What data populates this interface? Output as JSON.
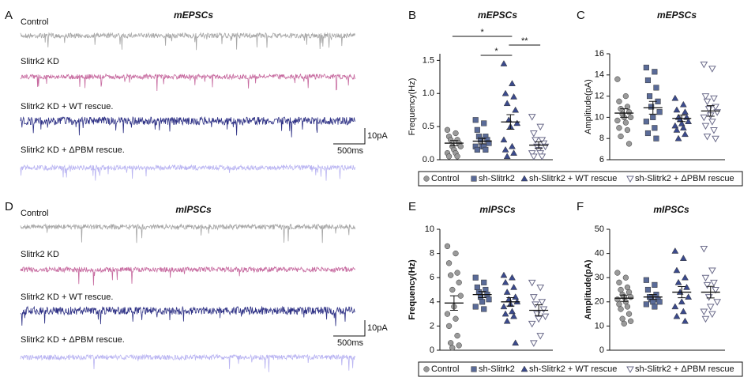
{
  "traces": [
    {
      "panel": "A",
      "title": "mEPSCs",
      "scale_y": "10pA",
      "scale_x": "500ms",
      "rows": [
        {
          "label": "Control",
          "color": "#a6a6a6"
        },
        {
          "label": "Slitrk2 KD",
          "color": "#c76ba0"
        },
        {
          "label": "Slitrk2 KD + WT rescue.",
          "color": "#2e3185"
        },
        {
          "label": "Slitrk2 KD + ΔPBM rescue.",
          "color": "#b9b4f2"
        }
      ]
    },
    {
      "panel": "D",
      "title": "mIPSCs",
      "scale_y": "10pA",
      "scale_x": "500ms",
      "rows": [
        {
          "label": "Control",
          "color": "#a6a6a6"
        },
        {
          "label": "Slitrk2 KD",
          "color": "#c76ba0"
        },
        {
          "label": "Slitrk2 KD + WT rescue.",
          "color": "#2e3185"
        },
        {
          "label": "Slitrk2 KD + ΔPBM rescue.",
          "color": "#b9b4f2"
        }
      ]
    }
  ],
  "chart_data": [
    {
      "type": "strip",
      "panel": "B",
      "title": "mEPSCs",
      "ylabel": "Frequency(Hz)",
      "ylabel_weight": "normal",
      "legend": "bottom",
      "ylim": [
        0,
        1.6
      ],
      "yticks": [
        {
          "value": 0,
          "label": "0.0"
        },
        0.5,
        {
          "value": 1,
          "label": "1.0"
        },
        1.5
      ],
      "series": [
        {
          "name": "Control",
          "color": "#9a9a9a",
          "marker": "circle",
          "filled": true,
          "mean": 0.25,
          "sem": 0.04,
          "values": [
            0.45,
            0.4,
            0.35,
            0.3,
            0.3,
            0.25,
            0.2,
            0.2,
            0.15,
            0.1,
            0.1,
            0.05,
            0.05
          ]
        },
        {
          "name": "sh-Slitrk2",
          "color": "#5a6b98",
          "marker": "square",
          "filled": true,
          "mean": 0.28,
          "sem": 0.04,
          "values": [
            0.6,
            0.55,
            0.45,
            0.35,
            0.35,
            0.3,
            0.3,
            0.25,
            0.2,
            0.2,
            0.2,
            0.15,
            0.15
          ]
        },
        {
          "name": "sh-Slitrk2 + WT rescue",
          "color": "#3b4a8c",
          "marker": "triangle",
          "filled": true,
          "mean": 0.57,
          "sem": 0.11,
          "values": [
            1.45,
            1.15,
            1.0,
            0.95,
            0.85,
            0.75,
            0.6,
            0.55,
            0.5,
            0.3,
            0.2,
            0.15,
            0.1,
            0.05
          ]
        },
        {
          "name": "sh-Slitrk2 + ΔPBM rescue",
          "color": "#6b6b8a",
          "marker": "triangle-down",
          "filled": false,
          "mean": 0.22,
          "sem": 0.05,
          "values": [
            0.65,
            0.5,
            0.4,
            0.3,
            0.3,
            0.25,
            0.2,
            0.2,
            0.15,
            0.1,
            0.1,
            0.05,
            0.05
          ]
        }
      ],
      "annotations": [
        {
          "label": "*",
          "between": [
            0,
            2
          ]
        },
        {
          "label": "*",
          "between": [
            1,
            2
          ]
        },
        {
          "label": "**",
          "between": [
            2,
            3
          ]
        }
      ]
    },
    {
      "type": "strip",
      "panel": "C",
      "title": "mEPSCs",
      "ylabel": "Amplitude(pA)",
      "ylabel_weight": "normal",
      "ylim": [
        6,
        16
      ],
      "yticks": [
        6,
        8,
        10,
        12,
        14,
        16
      ],
      "series": [
        {
          "color": "#9a9a9a",
          "marker": "circle",
          "filled": true,
          "mean": 10.4,
          "sem": 0.4,
          "values": [
            13.6,
            12,
            11.5,
            11,
            10.8,
            10.5,
            10.3,
            10,
            10,
            9.7,
            9.5,
            9,
            8.8,
            8.2,
            7.5
          ]
        },
        {
          "color": "#5a6b98",
          "marker": "square",
          "filled": true,
          "mean": 10.9,
          "sem": 0.6,
          "values": [
            14.7,
            14.3,
            13.5,
            12.8,
            12,
            11.5,
            11,
            10.5,
            10,
            9.6,
            9,
            8.5,
            8
          ]
        },
        {
          "color": "#3b4a8c",
          "marker": "triangle",
          "filled": true,
          "mean": 9.9,
          "sem": 0.3,
          "values": [
            11.8,
            11.2,
            10.7,
            10.5,
            10,
            10,
            9.8,
            9.6,
            9.4,
            9.2,
            9,
            8.8,
            8.4,
            8
          ]
        },
        {
          "color": "#6b6b8a",
          "marker": "triangle-down",
          "filled": false,
          "mean": 10.6,
          "sem": 0.5,
          "values": [
            15,
            14.6,
            12,
            11.8,
            11.5,
            11,
            10.8,
            10.5,
            10.2,
            10,
            9.6,
            9.2,
            8.8,
            8.2,
            8
          ]
        }
      ]
    },
    {
      "type": "strip",
      "panel": "E",
      "title": "mIPSCs",
      "ylabel": "Frequency(Hz)",
      "ylabel_weight": "bold",
      "legend": "bottom",
      "ylim": [
        0,
        10
      ],
      "yticks": [
        0,
        2,
        4,
        6,
        8,
        10
      ],
      "series": [
        {
          "name": "Control",
          "color": "#9a9a9a",
          "marker": "circle",
          "filled": true,
          "mean": 3.9,
          "sem": 0.6,
          "values": [
            8.6,
            8,
            7.2,
            6.4,
            6.2,
            5.6,
            5,
            4.5,
            3.6,
            3,
            2.6,
            2,
            1.2,
            0.6,
            0.4,
            0.2
          ]
        },
        {
          "name": "sh-Slitrk2",
          "color": "#5a6b98",
          "marker": "square",
          "filled": true,
          "mean": 4.6,
          "sem": 0.25,
          "values": [
            6,
            5.6,
            5.2,
            5,
            4.8,
            4.6,
            4.4,
            4.2,
            4,
            3.6,
            3.4
          ]
        },
        {
          "name": "sh-Slitrk2 + WT rescue",
          "color": "#3b4a8c",
          "marker": "triangle",
          "filled": true,
          "mean": 4.0,
          "sem": 0.35,
          "values": [
            6.2,
            6,
            5.6,
            5.2,
            4.8,
            4.4,
            4.2,
            4,
            3.8,
            3.6,
            3.2,
            3,
            2.8,
            2.4,
            0.6
          ]
        },
        {
          "name": "sh-Slitrk2 + ΔPBM rescue",
          "color": "#6b6b8a",
          "marker": "triangle-down",
          "filled": false,
          "mean": 3.3,
          "sem": 0.45,
          "values": [
            5.6,
            5.2,
            4.4,
            4,
            3.8,
            3.4,
            3,
            2.8,
            2.6,
            2.2,
            1.2,
            0.6
          ]
        }
      ]
    },
    {
      "type": "strip",
      "panel": "F",
      "title": "mIPSCs",
      "ylabel": "Amplitude(pA)",
      "ylabel_weight": "bold",
      "ylim": [
        0,
        50
      ],
      "yticks": [
        0,
        10,
        20,
        30,
        40,
        50
      ],
      "series": [
        {
          "color": "#9a9a9a",
          "marker": "circle",
          "filled": true,
          "mean": 21.5,
          "sem": 1.3,
          "values": [
            32,
            30,
            28,
            26,
            25,
            24,
            23,
            22,
            22,
            21,
            20,
            19,
            18,
            17,
            15,
            13,
            12,
            11
          ]
        },
        {
          "color": "#5a6b98",
          "marker": "square",
          "filled": true,
          "mean": 22,
          "sem": 1.0,
          "values": [
            29,
            27,
            25,
            23,
            22,
            21,
            21,
            20,
            20,
            19,
            18
          ]
        },
        {
          "color": "#3b4a8c",
          "marker": "triangle",
          "filled": true,
          "mean": 24,
          "sem": 2.3,
          "values": [
            41,
            38,
            33,
            30,
            28,
            26,
            24,
            22,
            20,
            18,
            16,
            14,
            12
          ]
        },
        {
          "color": "#6b6b8a",
          "marker": "triangle-down",
          "filled": false,
          "mean": 24,
          "sem": 2.4,
          "values": [
            42,
            33,
            30,
            28,
            27,
            25,
            22,
            20,
            18,
            16,
            15,
            13
          ]
        }
      ]
    }
  ]
}
